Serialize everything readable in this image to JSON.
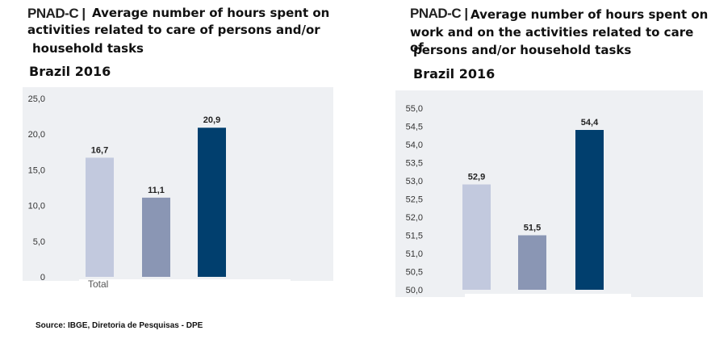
{
  "left": {
    "brand": "PNAD-C |",
    "title_line1": "Average number of hours spent on",
    "title_line2": "activities related to care of persons and/or",
    "title_line3": "household tasks",
    "year": "Brazil 2016",
    "source": "Source: IBGE, Diretoria de Pesquisas - DPE"
  },
  "right": {
    "brand": "PNAD-C |",
    "title_line1": "Average number of hours spent on",
    "title_line2": "work and on the activities related to  care of",
    "title_line3": "persons and/or household  tasks",
    "year": "Brazil 2016"
  },
  "chart_data": [
    {
      "type": "bar",
      "categories": [
        "Total",
        "",
        ""
      ],
      "values": [
        16.7,
        11.1,
        20.9
      ],
      "value_labels": [
        "16,7",
        "11,1",
        "20,9"
      ],
      "ylim": [
        0,
        25
      ],
      "yticks": [
        0,
        5,
        10,
        15,
        20,
        25
      ],
      "ytick_labels": [
        "0",
        "5,0",
        "10,0",
        "15,0",
        "20,0",
        "25,0"
      ],
      "colors": [
        "#c2c9de",
        "#8a96b4",
        "#013f6e"
      ],
      "grid": false
    },
    {
      "type": "bar",
      "categories": [
        "",
        "",
        ""
      ],
      "values": [
        52.9,
        51.5,
        54.4
      ],
      "value_labels": [
        "52,9",
        "51,5",
        "54,4"
      ],
      "ylim": [
        50,
        55
      ],
      "yticks": [
        50,
        50.5,
        51,
        51.5,
        52,
        52.5,
        53,
        53.5,
        54,
        54.5,
        55
      ],
      "ytick_labels": [
        "50,0",
        "50,5",
        "51,0",
        "51,5",
        "52,0",
        "52,5",
        "53,0",
        "53,5",
        "54,0",
        "54,5",
        "55,0"
      ],
      "colors": [
        "#c2c9de",
        "#8a96b4",
        "#013f6e"
      ],
      "grid": false
    }
  ]
}
